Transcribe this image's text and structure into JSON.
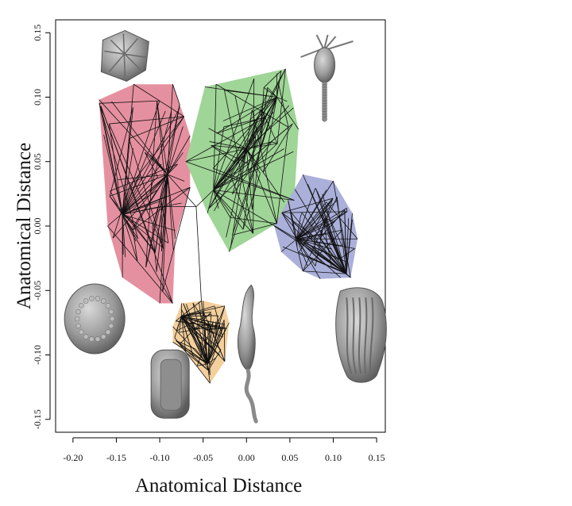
{
  "chart_data": {
    "type": "scatter",
    "title": "",
    "xlabel": "Anatomical Distance",
    "ylabel": "Anatomical Distance",
    "xlim": [
      -0.22,
      0.16
    ],
    "ylim": [
      -0.16,
      0.16
    ],
    "x_ticks": [
      -0.2,
      -0.15,
      -0.1,
      -0.05,
      0.0,
      0.05,
      0.1,
      0.15
    ],
    "y_ticks": [
      -0.15,
      -0.1,
      -0.05,
      0.0,
      0.05,
      0.1,
      0.15
    ],
    "x_tick_labels": [
      "-0.20",
      "-0.15",
      "-0.10",
      "-0.05",
      "0.00",
      "0.05",
      "0.10",
      "0.15"
    ],
    "y_tick_labels": [
      "-0.15",
      "-0.10",
      "-0.05",
      "0.00",
      "0.05",
      "0.10",
      "0.15"
    ],
    "grid": false,
    "legend": "none",
    "groups": [
      {
        "color": "#e590a0",
        "hull": [
          [
            -0.17,
            0.098
          ],
          [
            -0.13,
            0.11
          ],
          [
            -0.085,
            0.11
          ],
          [
            -0.072,
            0.085
          ],
          [
            -0.065,
            0.07
          ],
          [
            -0.065,
            0.03
          ],
          [
            -0.082,
            -0.01
          ],
          [
            -0.085,
            -0.06
          ],
          [
            -0.1,
            -0.06
          ],
          [
            -0.143,
            -0.04
          ],
          [
            -0.16,
            0.0
          ]
        ],
        "hubs": [
          [
            -0.143,
            0.009
          ],
          [
            -0.091,
            0.04
          ]
        ]
      },
      {
        "color": "#9fd596",
        "hull": [
          [
            -0.07,
            0.05
          ],
          [
            -0.048,
            0.108
          ],
          [
            -0.035,
            0.11
          ],
          [
            0.045,
            0.122
          ],
          [
            0.06,
            0.075
          ],
          [
            0.055,
            0.02
          ],
          [
            0.035,
            0.002
          ],
          [
            -0.02,
            -0.02
          ],
          [
            -0.045,
            0.01
          ]
        ],
        "hubs": [
          [
            -0.038,
            0.028
          ],
          [
            0.0,
            0.06
          ],
          [
            0.035,
            0.1
          ]
        ]
      },
      {
        "color": "#aab0da",
        "hull": [
          [
            0.032,
            0.0
          ],
          [
            0.048,
            0.02
          ],
          [
            0.065,
            0.04
          ],
          [
            0.1,
            0.035
          ],
          [
            0.122,
            0.01
          ],
          [
            0.128,
            -0.01
          ],
          [
            0.12,
            -0.04
          ],
          [
            0.085,
            -0.041
          ],
          [
            0.065,
            -0.035
          ],
          [
            0.04,
            -0.02
          ]
        ],
        "hubs": [
          [
            0.058,
            -0.01
          ],
          [
            0.115,
            -0.037
          ]
        ]
      },
      {
        "color": "#f3cf9c",
        "hull": [
          [
            -0.085,
            -0.078
          ],
          [
            -0.075,
            -0.06
          ],
          [
            -0.05,
            -0.058
          ],
          [
            -0.025,
            -0.062
          ],
          [
            -0.02,
            -0.075
          ],
          [
            -0.025,
            -0.105
          ],
          [
            -0.042,
            -0.122
          ],
          [
            -0.07,
            -0.098
          ],
          [
            -0.085,
            -0.09
          ]
        ],
        "hubs": [
          [
            -0.075,
            -0.07
          ],
          [
            -0.045,
            -0.107
          ]
        ]
      }
    ],
    "connectors": [
      [
        [
          -0.143,
          0.009
        ],
        [
          -0.1,
          0.015
        ]
      ],
      [
        [
          -0.1,
          0.015
        ],
        [
          -0.058,
          0.015
        ]
      ],
      [
        [
          -0.091,
          0.04
        ],
        [
          -0.058,
          0.015
        ]
      ],
      [
        [
          -0.058,
          0.015
        ],
        [
          -0.038,
          0.028
        ]
      ],
      [
        [
          -0.038,
          0.028
        ],
        [
          0.058,
          -0.01
        ]
      ],
      [
        [
          -0.058,
          0.015
        ],
        [
          -0.052,
          -0.058
        ]
      ],
      [
        [
          -0.052,
          -0.058
        ],
        [
          -0.045,
          -0.107
        ]
      ],
      [
        [
          -0.052,
          -0.058
        ],
        [
          -0.075,
          -0.07
        ]
      ]
    ],
    "specimens": [
      {
        "name": "flattened-disc-fossil",
        "x": -0.14,
        "y": 0.132
      },
      {
        "name": "stalked-crinoid-fossil",
        "x": 0.09,
        "y": 0.12
      },
      {
        "name": "oval-textured-fossil",
        "x": -0.175,
        "y": -0.072
      },
      {
        "name": "cylindrical-fossil",
        "x": -0.088,
        "y": -0.122
      },
      {
        "name": "elongated-stalk-fossil",
        "x": 0.0,
        "y": -0.09
      },
      {
        "name": "folded-cup-fossil",
        "x": 0.13,
        "y": -0.085
      }
    ]
  }
}
